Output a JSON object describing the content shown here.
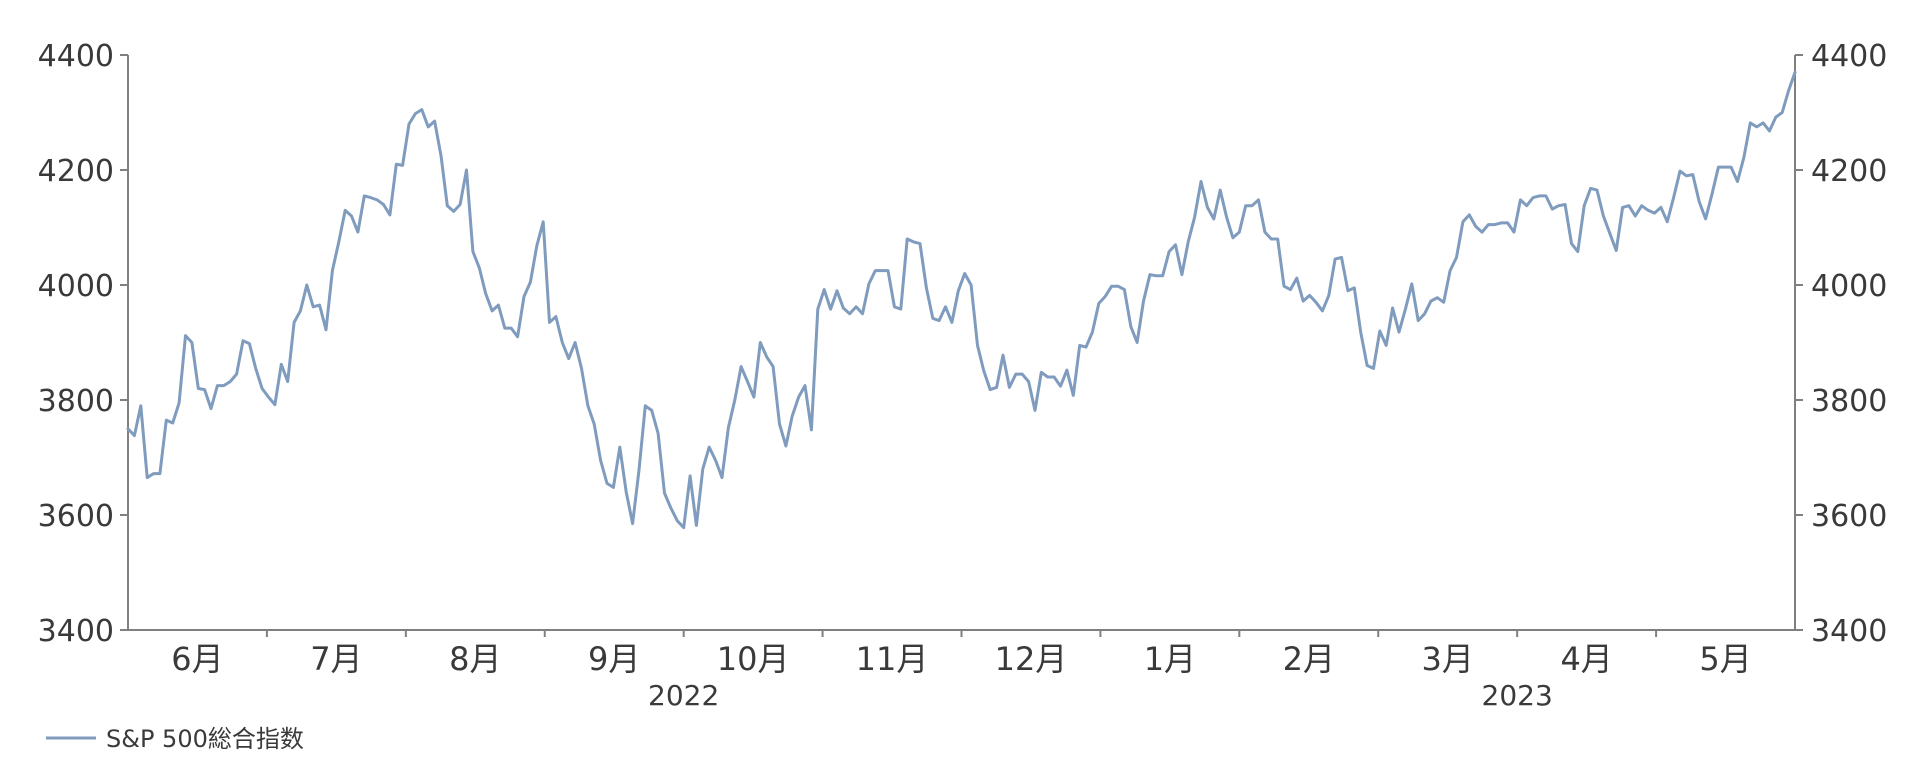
{
  "chart_data": {
    "type": "line",
    "title": "",
    "xlabel": "",
    "ylabel": "",
    "ylim": [
      3400,
      4400
    ],
    "yticks": [
      3400,
      3600,
      3800,
      4000,
      4200,
      4400
    ],
    "dual_y_axis": true,
    "grid": false,
    "legend_position": "bottom-left",
    "line_color": "#7f9bbd",
    "axis_color": "#808080",
    "months": [
      "6月",
      "7月",
      "8月",
      "9月",
      "10月",
      "11月",
      "12月",
      "1月",
      "2月",
      "3月",
      "4月",
      "5月"
    ],
    "years": [
      {
        "label": "2022",
        "center_month_index": 3.5
      },
      {
        "label": "2023",
        "center_month_index": 9.5
      }
    ],
    "series": [
      {
        "name": "S&P 500総合指数",
        "x_start": "2022-05-27",
        "x_end": "2023-06-07",
        "x_unit": "trading day",
        "values": [
          3750,
          3738,
          3790,
          3665,
          3672,
          3672,
          3765,
          3760,
          3795,
          3912,
          3900,
          3820,
          3818,
          3785,
          3825,
          3825,
          3832,
          3845,
          3903,
          3898,
          3855,
          3820,
          3805,
          3792,
          3862,
          3832,
          3935,
          3955,
          4000,
          3962,
          3965,
          3922,
          4025,
          4075,
          4130,
          4120,
          4092,
          4155,
          4152,
          4148,
          4140,
          4122,
          4210,
          4208,
          4280,
          4298,
          4305,
          4275,
          4285,
          4225,
          4138,
          4128,
          4140,
          4200,
          4058,
          4030,
          3985,
          3955,
          3965,
          3925,
          3925,
          3910,
          3980,
          4005,
          4068,
          4110,
          3935,
          3945,
          3900,
          3872,
          3900,
          3855,
          3790,
          3758,
          3695,
          3655,
          3648,
          3718,
          3640,
          3585,
          3678,
          3790,
          3782,
          3742,
          3638,
          3612,
          3590,
          3578,
          3668,
          3582,
          3680,
          3718,
          3695,
          3665,
          3752,
          3800,
          3858,
          3832,
          3805,
          3900,
          3875,
          3858,
          3758,
          3720,
          3772,
          3805,
          3825,
          3748,
          3958,
          3992,
          3958,
          3990,
          3960,
          3950,
          3962,
          3950,
          4002,
          4025,
          4025,
          4025,
          3962,
          3958,
          4080,
          4075,
          4072,
          3995,
          3942,
          3938,
          3962,
          3935,
          3990,
          4020,
          4000,
          3895,
          3850,
          3818,
          3822,
          3878,
          3822,
          3845,
          3845,
          3832,
          3782,
          3848,
          3840,
          3840,
          3824,
          3852,
          3808,
          3895,
          3892,
          3918,
          3968,
          3980,
          3998,
          3998,
          3992,
          3928,
          3900,
          3972,
          4018,
          4016,
          4016,
          4058,
          4070,
          4018,
          4075,
          4118,
          4180,
          4135,
          4115,
          4165,
          4118,
          4082,
          4092,
          4138,
          4138,
          4148,
          4092,
          4080,
          4080,
          3998,
          3992,
          4012,
          3972,
          3982,
          3970,
          3955,
          3982,
          4045,
          4048,
          3990,
          3995,
          3918,
          3860,
          3855,
          3920,
          3895,
          3960,
          3918,
          3958,
          4002,
          3938,
          3950,
          3972,
          3978,
          3970,
          4025,
          4048,
          4110,
          4122,
          4102,
          4092,
          4105,
          4105,
          4108,
          4108,
          4092,
          4148,
          4138,
          4152,
          4155,
          4155,
          4132,
          4138,
          4140,
          4072,
          4058,
          4138,
          4168,
          4165,
          4120,
          4090,
          4060,
          4135,
          4138,
          4120,
          4138,
          4130,
          4125,
          4135,
          4110,
          4152,
          4198,
          4190,
          4192,
          4145,
          4115,
          4158,
          4205,
          4205,
          4205,
          4180,
          4222,
          4282,
          4275,
          4282,
          4268,
          4292,
          4300,
          4338,
          4370
        ]
      }
    ]
  }
}
